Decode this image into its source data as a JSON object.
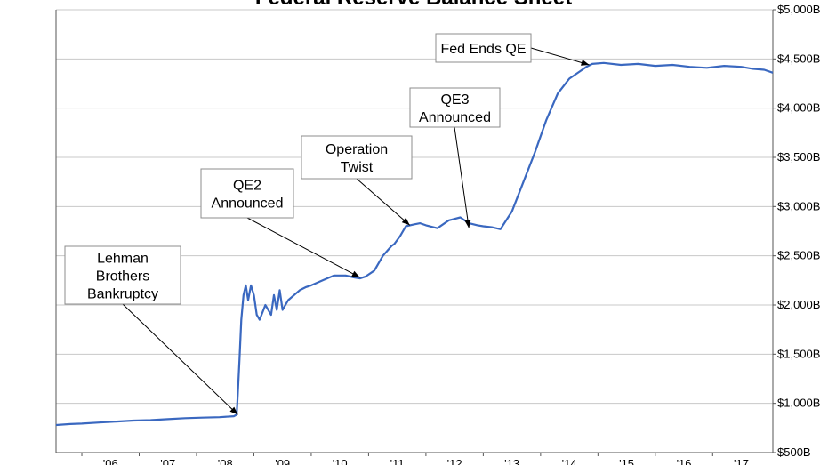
{
  "chart_data": {
    "type": "line",
    "title": "Federal Reserve Balance Sheet",
    "ylim": [
      500,
      5000
    ],
    "y_ticks": [
      {
        "value": 500,
        "label": "$500B"
      },
      {
        "value": 1000,
        "label": "$1,000B"
      },
      {
        "value": 1500,
        "label": "$1,500B"
      },
      {
        "value": 2000,
        "label": "$2,000B"
      },
      {
        "value": 2500,
        "label": "$2,500B"
      },
      {
        "value": 3000,
        "label": "$3,000B"
      },
      {
        "value": 3500,
        "label": "$3,500B"
      },
      {
        "value": 4000,
        "label": "$4,000B"
      },
      {
        "value": 4500,
        "label": "$4,500B"
      },
      {
        "value": 5000,
        "label": "$5,000B"
      }
    ],
    "x_ticks": [
      {
        "value": 2006,
        "label": "'06"
      },
      {
        "value": 2007,
        "label": "'07"
      },
      {
        "value": 2008,
        "label": "'08"
      },
      {
        "value": 2009,
        "label": "'09"
      },
      {
        "value": 2010,
        "label": "'10"
      },
      {
        "value": 2011,
        "label": "'11"
      },
      {
        "value": 2012,
        "label": "'12"
      },
      {
        "value": 2013,
        "label": "'13"
      },
      {
        "value": 2014,
        "label": "'14"
      },
      {
        "value": 2015,
        "label": "'15"
      },
      {
        "value": 2016,
        "label": "'16"
      },
      {
        "value": 2017,
        "label": "'17"
      }
    ],
    "grid": true,
    "line_color": "#3a68c0",
    "series": [
      {
        "x": [
          2005.55,
          2005.8,
          2006.0,
          2006.3,
          2006.6,
          2006.9,
          2007.2,
          2007.5,
          2007.8,
          2008.1,
          2008.4,
          2008.65,
          2008.7,
          2008.72,
          2008.75,
          2008.78,
          2008.82,
          2008.86,
          2008.9,
          2008.95,
          2009.0,
          2009.05,
          2009.1,
          2009.2,
          2009.3,
          2009.35,
          2009.4,
          2009.45,
          2009.5,
          2009.55,
          2009.6,
          2009.7,
          2009.8,
          2009.9,
          2010.0,
          2010.2,
          2010.4,
          2010.6,
          2010.75,
          2010.85,
          2010.95,
          2011.1,
          2011.25,
          2011.4,
          2011.45,
          2011.55,
          2011.65,
          2011.8,
          2011.9,
          2012.0,
          2012.2,
          2012.4,
          2012.6,
          2012.75,
          2012.9,
          2013.0,
          2013.15,
          2013.3,
          2013.5,
          2013.7,
          2013.9,
          2014.1,
          2014.3,
          2014.5,
          2014.7,
          2014.8,
          2014.9,
          2015.1,
          2015.4,
          2015.7,
          2016.0,
          2016.3,
          2016.6,
          2016.9,
          2017.2,
          2017.5,
          2017.7,
          2017.9,
          2018.05
        ],
        "values": [
          780,
          790,
          795,
          805,
          815,
          825,
          830,
          840,
          850,
          855,
          860,
          870,
          885,
          1100,
          1450,
          1850,
          2100,
          2200,
          2050,
          2200,
          2100,
          1900,
          1850,
          2000,
          1900,
          2100,
          1950,
          2150,
          1950,
          2000,
          2050,
          2100,
          2150,
          2180,
          2200,
          2250,
          2300,
          2300,
          2280,
          2270,
          2290,
          2350,
          2500,
          2600,
          2620,
          2700,
          2800,
          2820,
          2830,
          2810,
          2780,
          2860,
          2890,
          2830,
          2810,
          2800,
          2790,
          2770,
          2950,
          3250,
          3550,
          3880,
          4150,
          4300,
          4380,
          4420,
          4450,
          4460,
          4440,
          4450,
          4430,
          4440,
          4420,
          4410,
          4430,
          4420,
          4400,
          4390,
          4360
        ]
      }
    ],
    "annotations": [
      {
        "lines": [
          "Lehman",
          "Brothers",
          "Bankruptcy"
        ],
        "point": {
          "x": 2008.72,
          "y": 885
        }
      },
      {
        "lines": [
          "QE2",
          "Announced"
        ],
        "point": {
          "x": 2010.85,
          "y": 2280
        }
      },
      {
        "lines": [
          "Operation",
          "Twist"
        ],
        "point": {
          "x": 2011.72,
          "y": 2810
        }
      },
      {
        "lines": [
          "QE3",
          "Announced"
        ],
        "point": {
          "x": 2012.75,
          "y": 2780
        }
      },
      {
        "lines": [
          "Fed Ends QE"
        ],
        "point": {
          "x": 2014.85,
          "y": 4440
        }
      }
    ]
  }
}
